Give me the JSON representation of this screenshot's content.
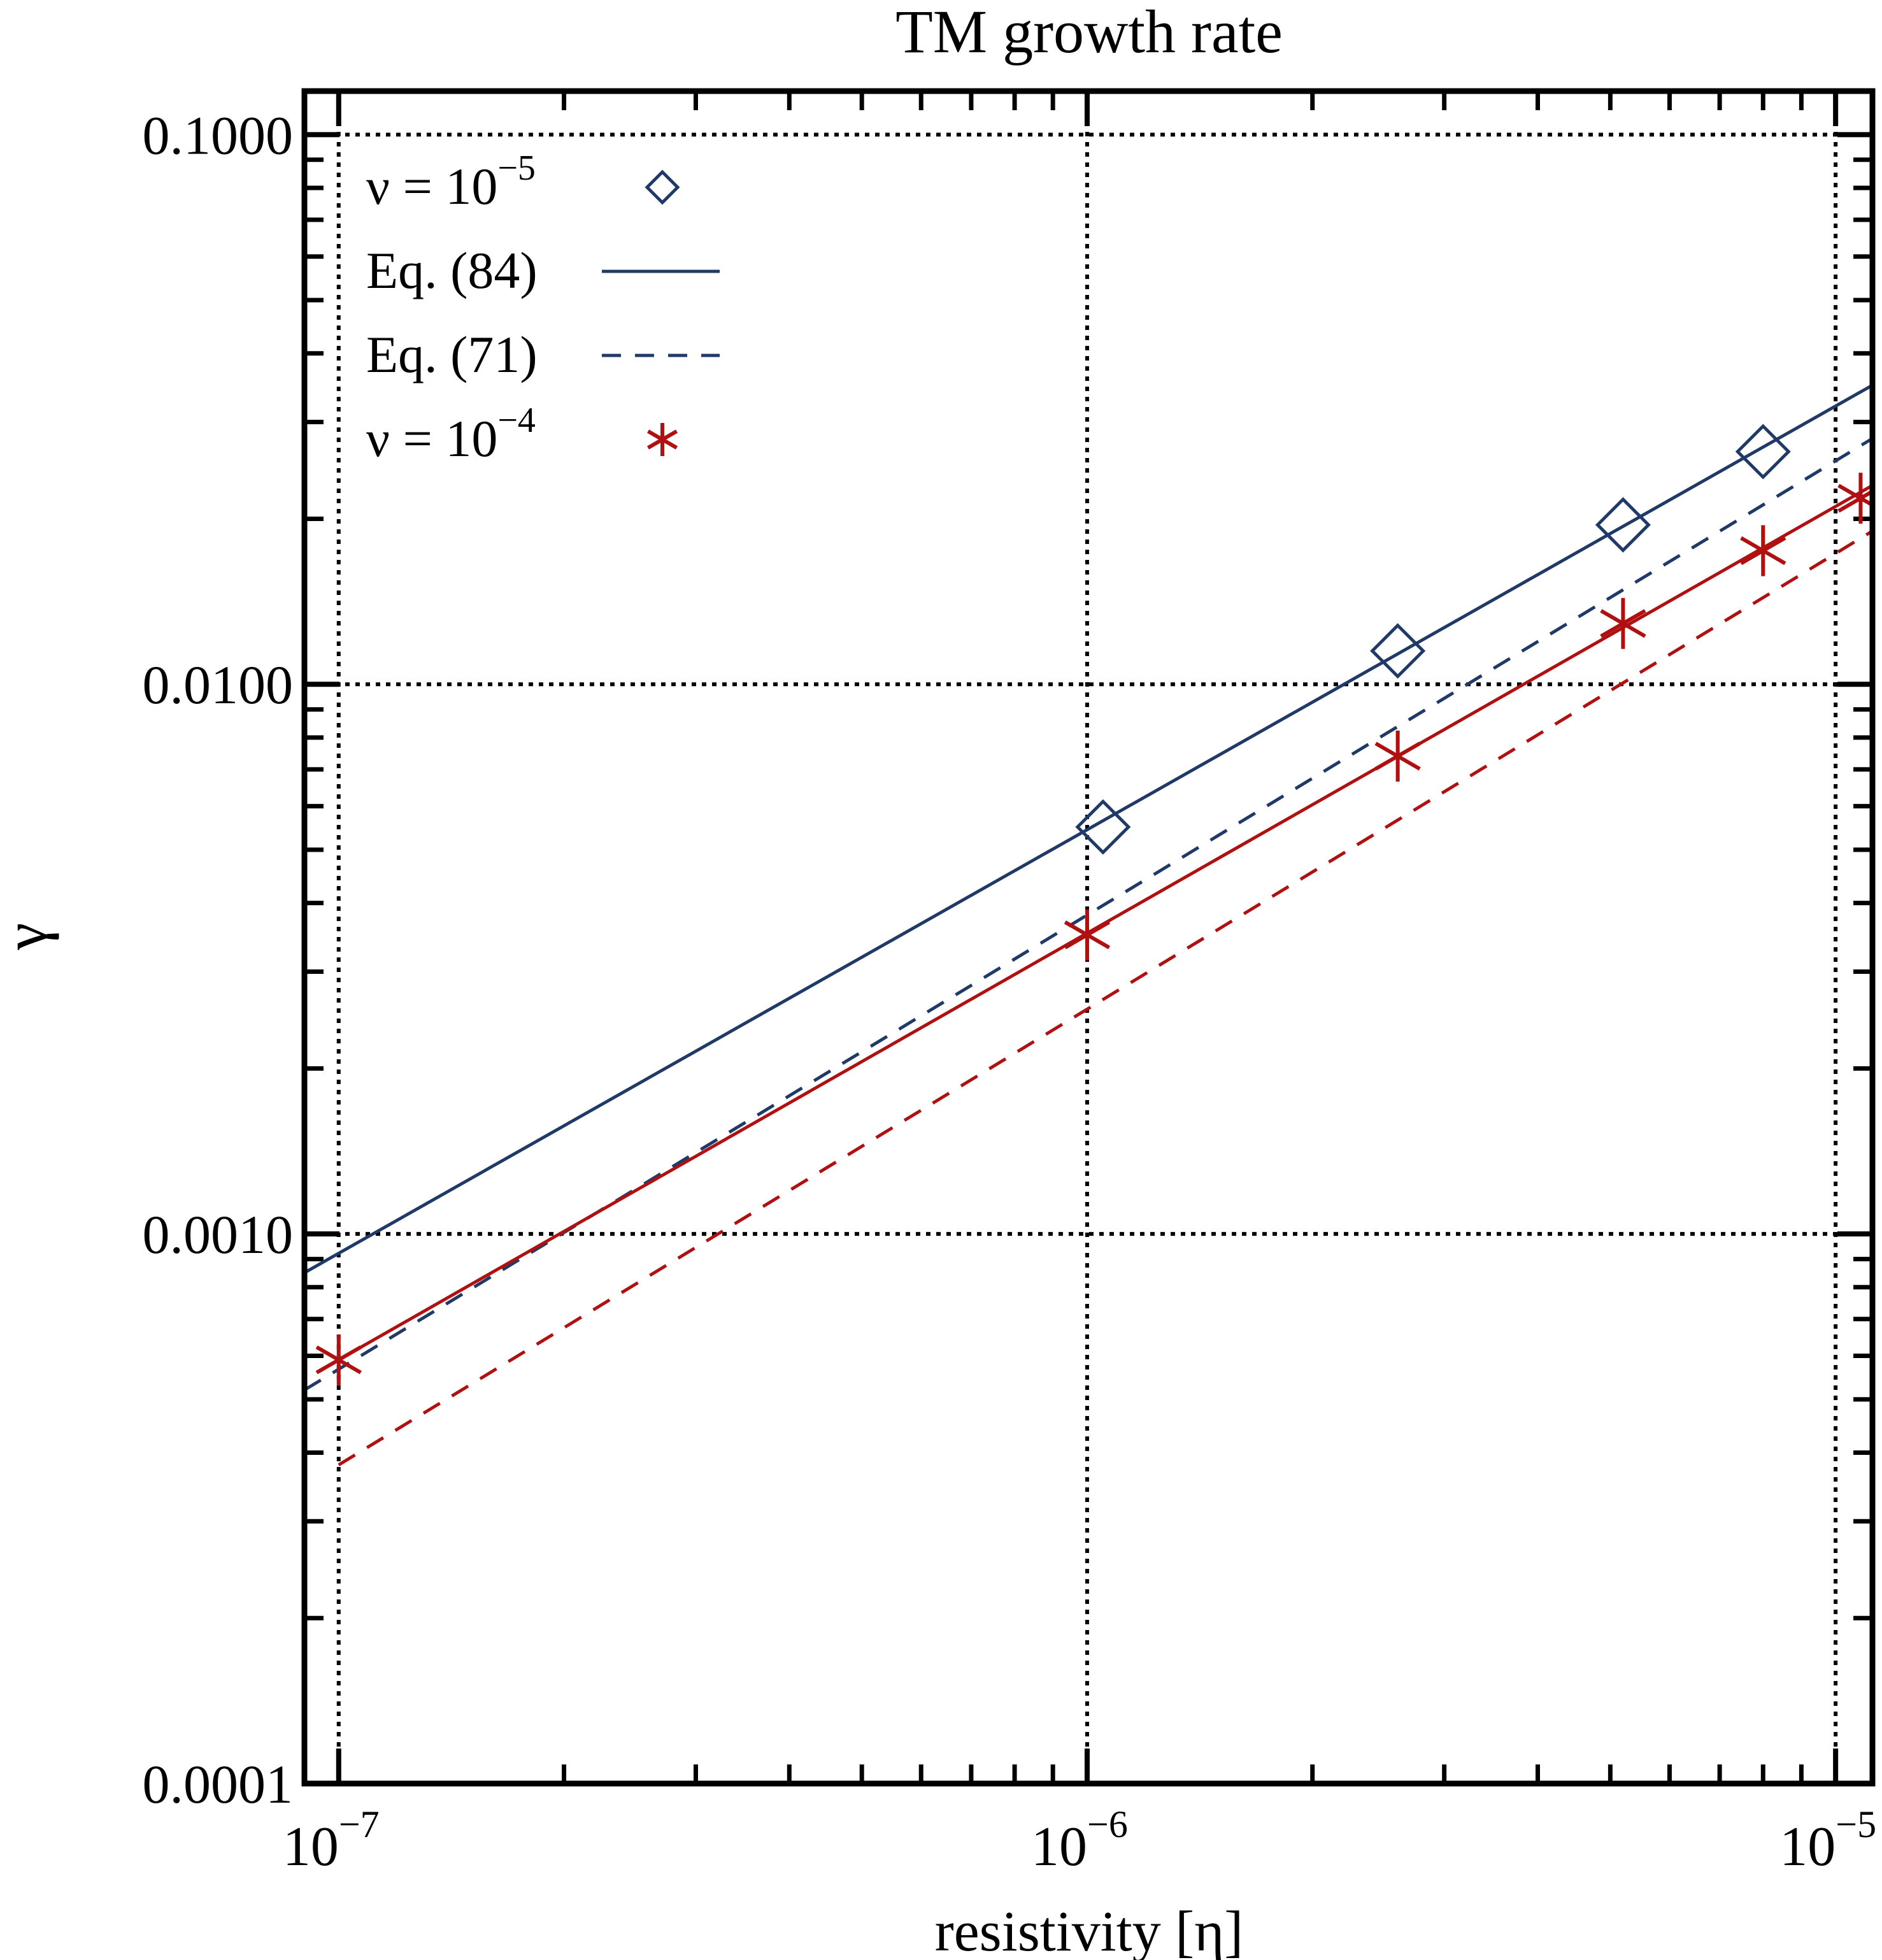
{
  "chart_data": {
    "type": "scatter",
    "title": "TM growth rate",
    "xlabel": "resistivity [η]",
    "ylabel": "γ",
    "xscale": "log",
    "yscale": "log",
    "xlim": [
      9e-08,
      1.12e-05
    ],
    "ylim": [
      0.0001,
      0.12
    ],
    "grid": true,
    "legend_position": "top-left",
    "x_ticks": [
      {
        "base": "10",
        "exp": "−7"
      },
      {
        "base": "10",
        "exp": "−6"
      },
      {
        "base": "10",
        "exp": "−5"
      }
    ],
    "y_ticks": [
      "0.0001",
      "0.0010",
      "0.0100",
      "0.1000"
    ],
    "colors": {
      "blue": "#1f3a68",
      "red": "#b01010"
    },
    "series": [
      {
        "name": "ν = 10",
        "name_sup": "−5",
        "kind": "markers",
        "marker": "diamond",
        "color": "#1f3a68",
        "x": [
          1.05e-06,
          2.6e-06,
          5.2e-06,
          8e-06
        ],
        "y": [
          0.0055,
          0.0115,
          0.0195,
          0.0265
        ]
      },
      {
        "name": "Eq. (84)",
        "kind": "line",
        "style": "solid",
        "color": "#1f3a68",
        "x": [
          9e-08,
          1.12e-05
        ],
        "y": [
          0.00085,
          0.035
        ]
      },
      {
        "name": "Eq. (71)",
        "kind": "line",
        "style": "dashed",
        "color": "#1f3a68",
        "x": [
          9e-08,
          1.12e-05
        ],
        "y": [
          0.00052,
          0.028
        ]
      },
      {
        "name": "ν = 10",
        "name_sup": "−4",
        "kind": "markers",
        "marker": "asterisk",
        "color": "#b01010",
        "x": [
          1e-07,
          1e-06,
          2.6e-06,
          5.2e-06,
          8e-06,
          1.08e-05
        ],
        "y": [
          0.00059,
          0.0035,
          0.0074,
          0.0129,
          0.0175,
          0.0218
        ]
      },
      {
        "kind": "line",
        "style": "solid",
        "color": "#b01010",
        "x": [
          1e-07,
          1.12e-05
        ],
        "y": [
          0.00059,
          0.023
        ]
      },
      {
        "kind": "line",
        "style": "dashed",
        "color": "#b01010",
        "x": [
          1e-07,
          1.12e-05
        ],
        "y": [
          0.00038,
          0.019
        ]
      }
    ]
  }
}
